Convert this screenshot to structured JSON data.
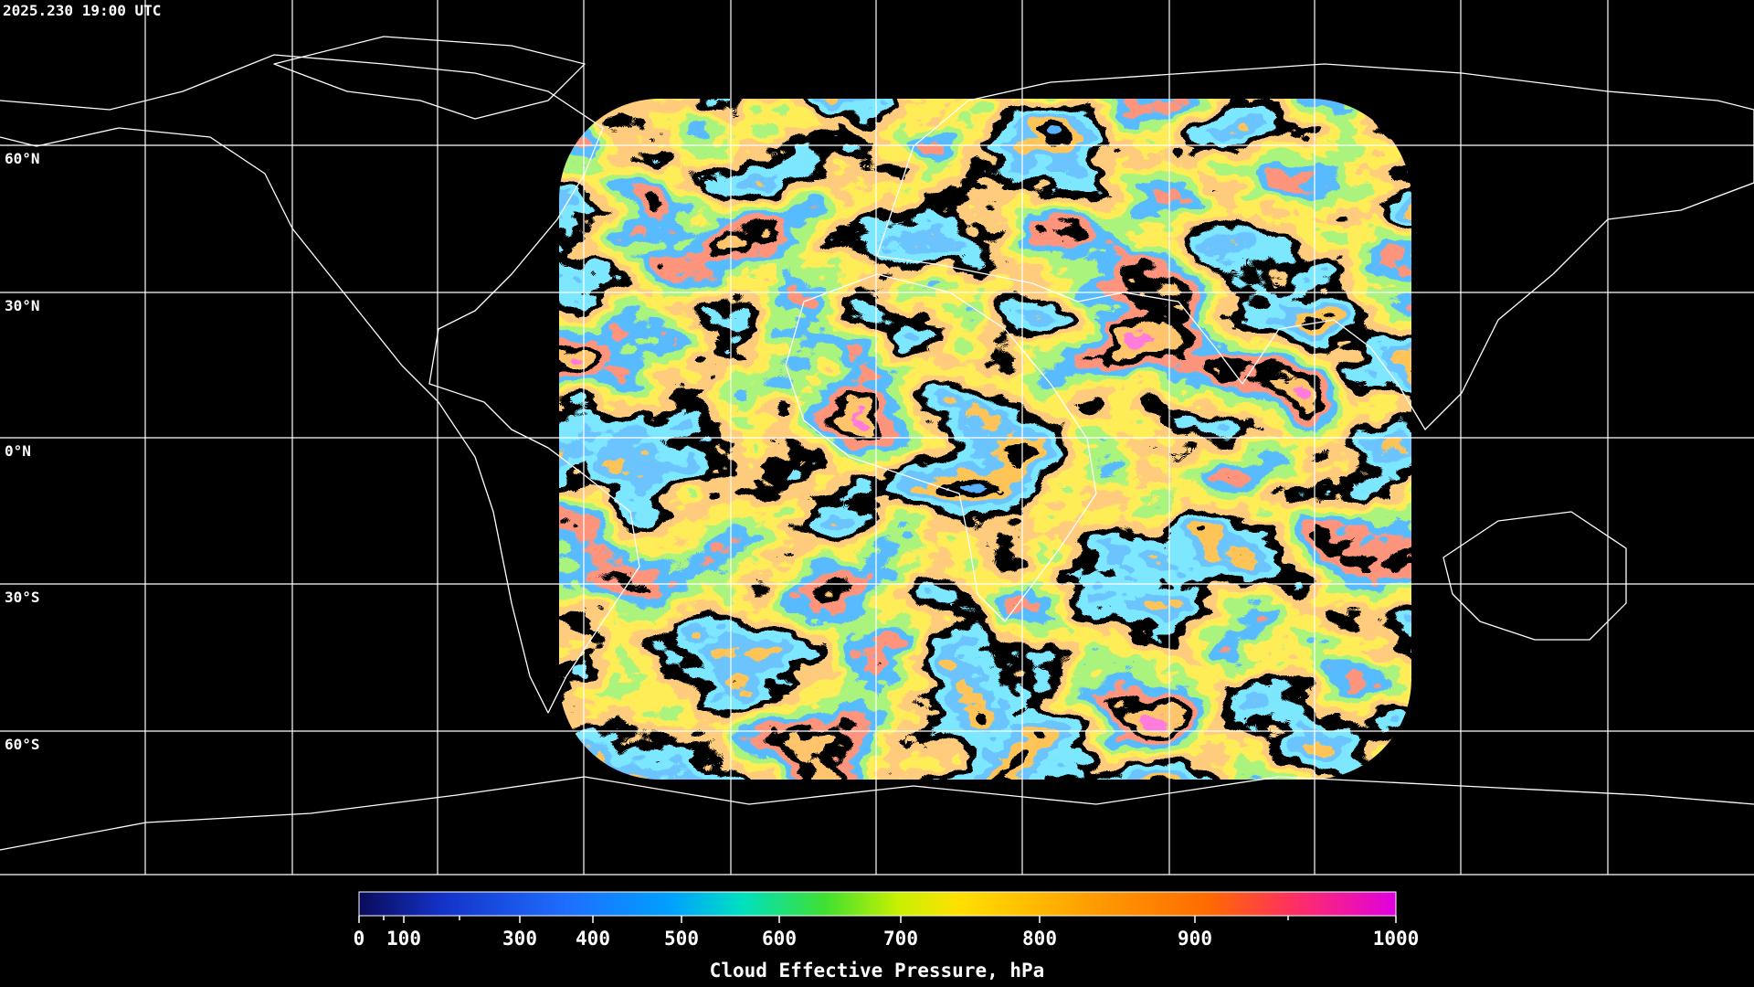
{
  "header": {
    "timestamp": "2025.230 19:00 UTC"
  },
  "map": {
    "lat_labels": [
      "60°N",
      "30°N",
      "0°N",
      "30°S",
      "60°S"
    ]
  },
  "colorbar": {
    "ticks": [
      0,
      100,
      300,
      400,
      500,
      600,
      700,
      800,
      900,
      1000
    ],
    "title": "Cloud Effective Pressure, hPa"
  }
}
